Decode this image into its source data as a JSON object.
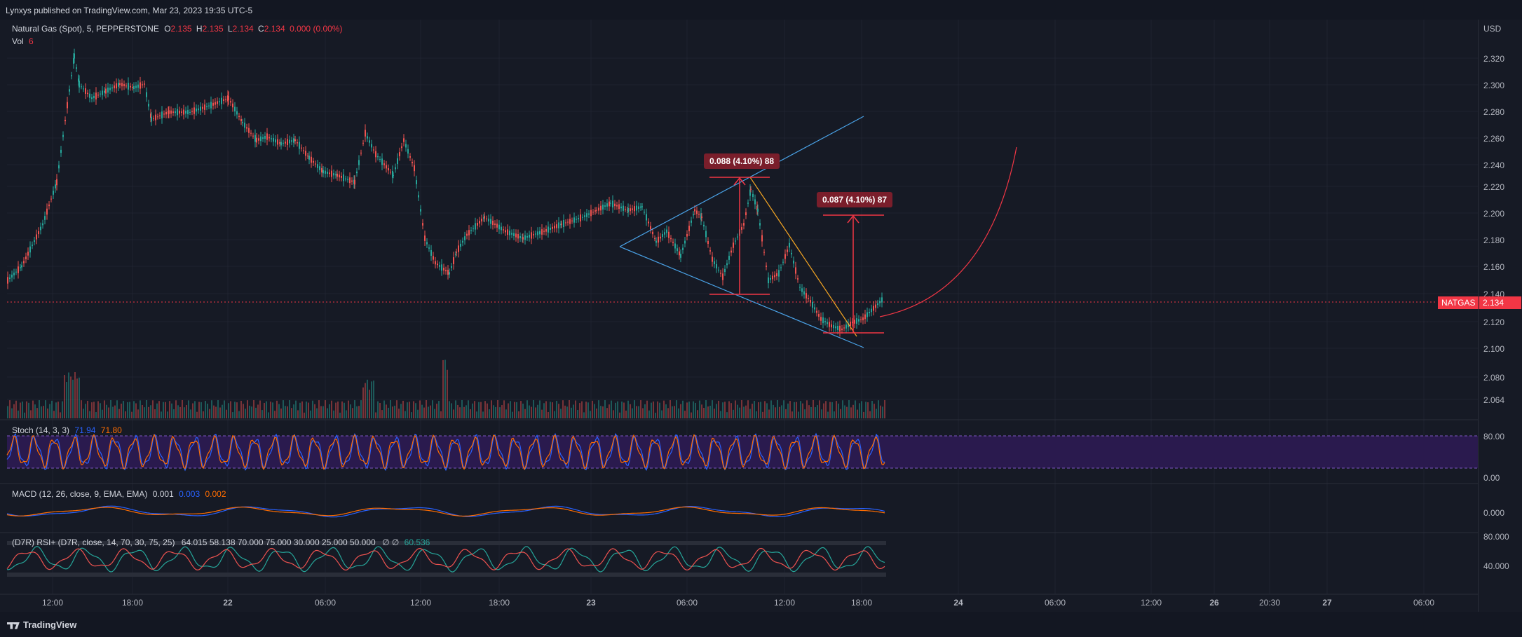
{
  "publish_line": "Lynxys published on TradingView.com, Mar 23, 2023 19:35 UTC-5",
  "symbol_title": "Natural Gas (Spot), 5, PEPPERSTONE",
  "ohlc": {
    "o_label": "O",
    "o": "2.135",
    "h_label": "H",
    "h": "2.135",
    "l_label": "L",
    "l": "2.134",
    "c_label": "C",
    "c": "2.134",
    "change": "0.000 (0.00%)"
  },
  "volume": {
    "label": "Vol",
    "value": "6"
  },
  "stoch": {
    "label": "Stoch (14, 3, 3)",
    "k": "71.94",
    "d": "71.80"
  },
  "macd": {
    "label": "MACD (12, 26, close, 9, EMA, EMA)",
    "hist": "0.001",
    "macd": "0.003",
    "signal": "0.002"
  },
  "rsi": {
    "label": "(D7R) RSI+ (D7R, close, 14, 70, 30, 75, 25)",
    "values": "64.015  58.138  70.000  75.000  30.000  25.000  50.000",
    "symbols": "∅ ∅",
    "last": "60.536"
  },
  "currency": "USD",
  "price_ticks": [
    "2.320",
    "2.300",
    "2.280",
    "2.260",
    "2.240",
    "2.220",
    "2.200",
    "2.180",
    "2.160",
    "2.140",
    "2.120",
    "2.100",
    "2.080",
    "2.064"
  ],
  "stoch_ticks": [
    "80.00",
    "0.00"
  ],
  "macd_ticks": [
    "0.000"
  ],
  "rsi_ticks": [
    "80.000",
    "40.000"
  ],
  "time_ticks": [
    "12:00",
    "18:00",
    "22",
    "06:00",
    "12:00",
    "18:00",
    "23",
    "06:00",
    "12:00",
    "18:00",
    "24",
    "06:00",
    "12:00",
    "26",
    "20:30",
    "27",
    "06:00"
  ],
  "last_price": {
    "symbol": "NATGAS",
    "value": "2.134"
  },
  "annotations": {
    "measure1": "0.088 (4.10%) 88",
    "measure2": "0.087 (4.10%) 87"
  },
  "brand": "TradingView",
  "colors": {
    "up": "#26a69a",
    "down": "#ef5350",
    "accent_red": "#f23645",
    "blue": "#2962ff",
    "orange": "#ff6d00",
    "stoch_band": "#2a1a4e",
    "trendline": "#4aa3e8"
  }
}
